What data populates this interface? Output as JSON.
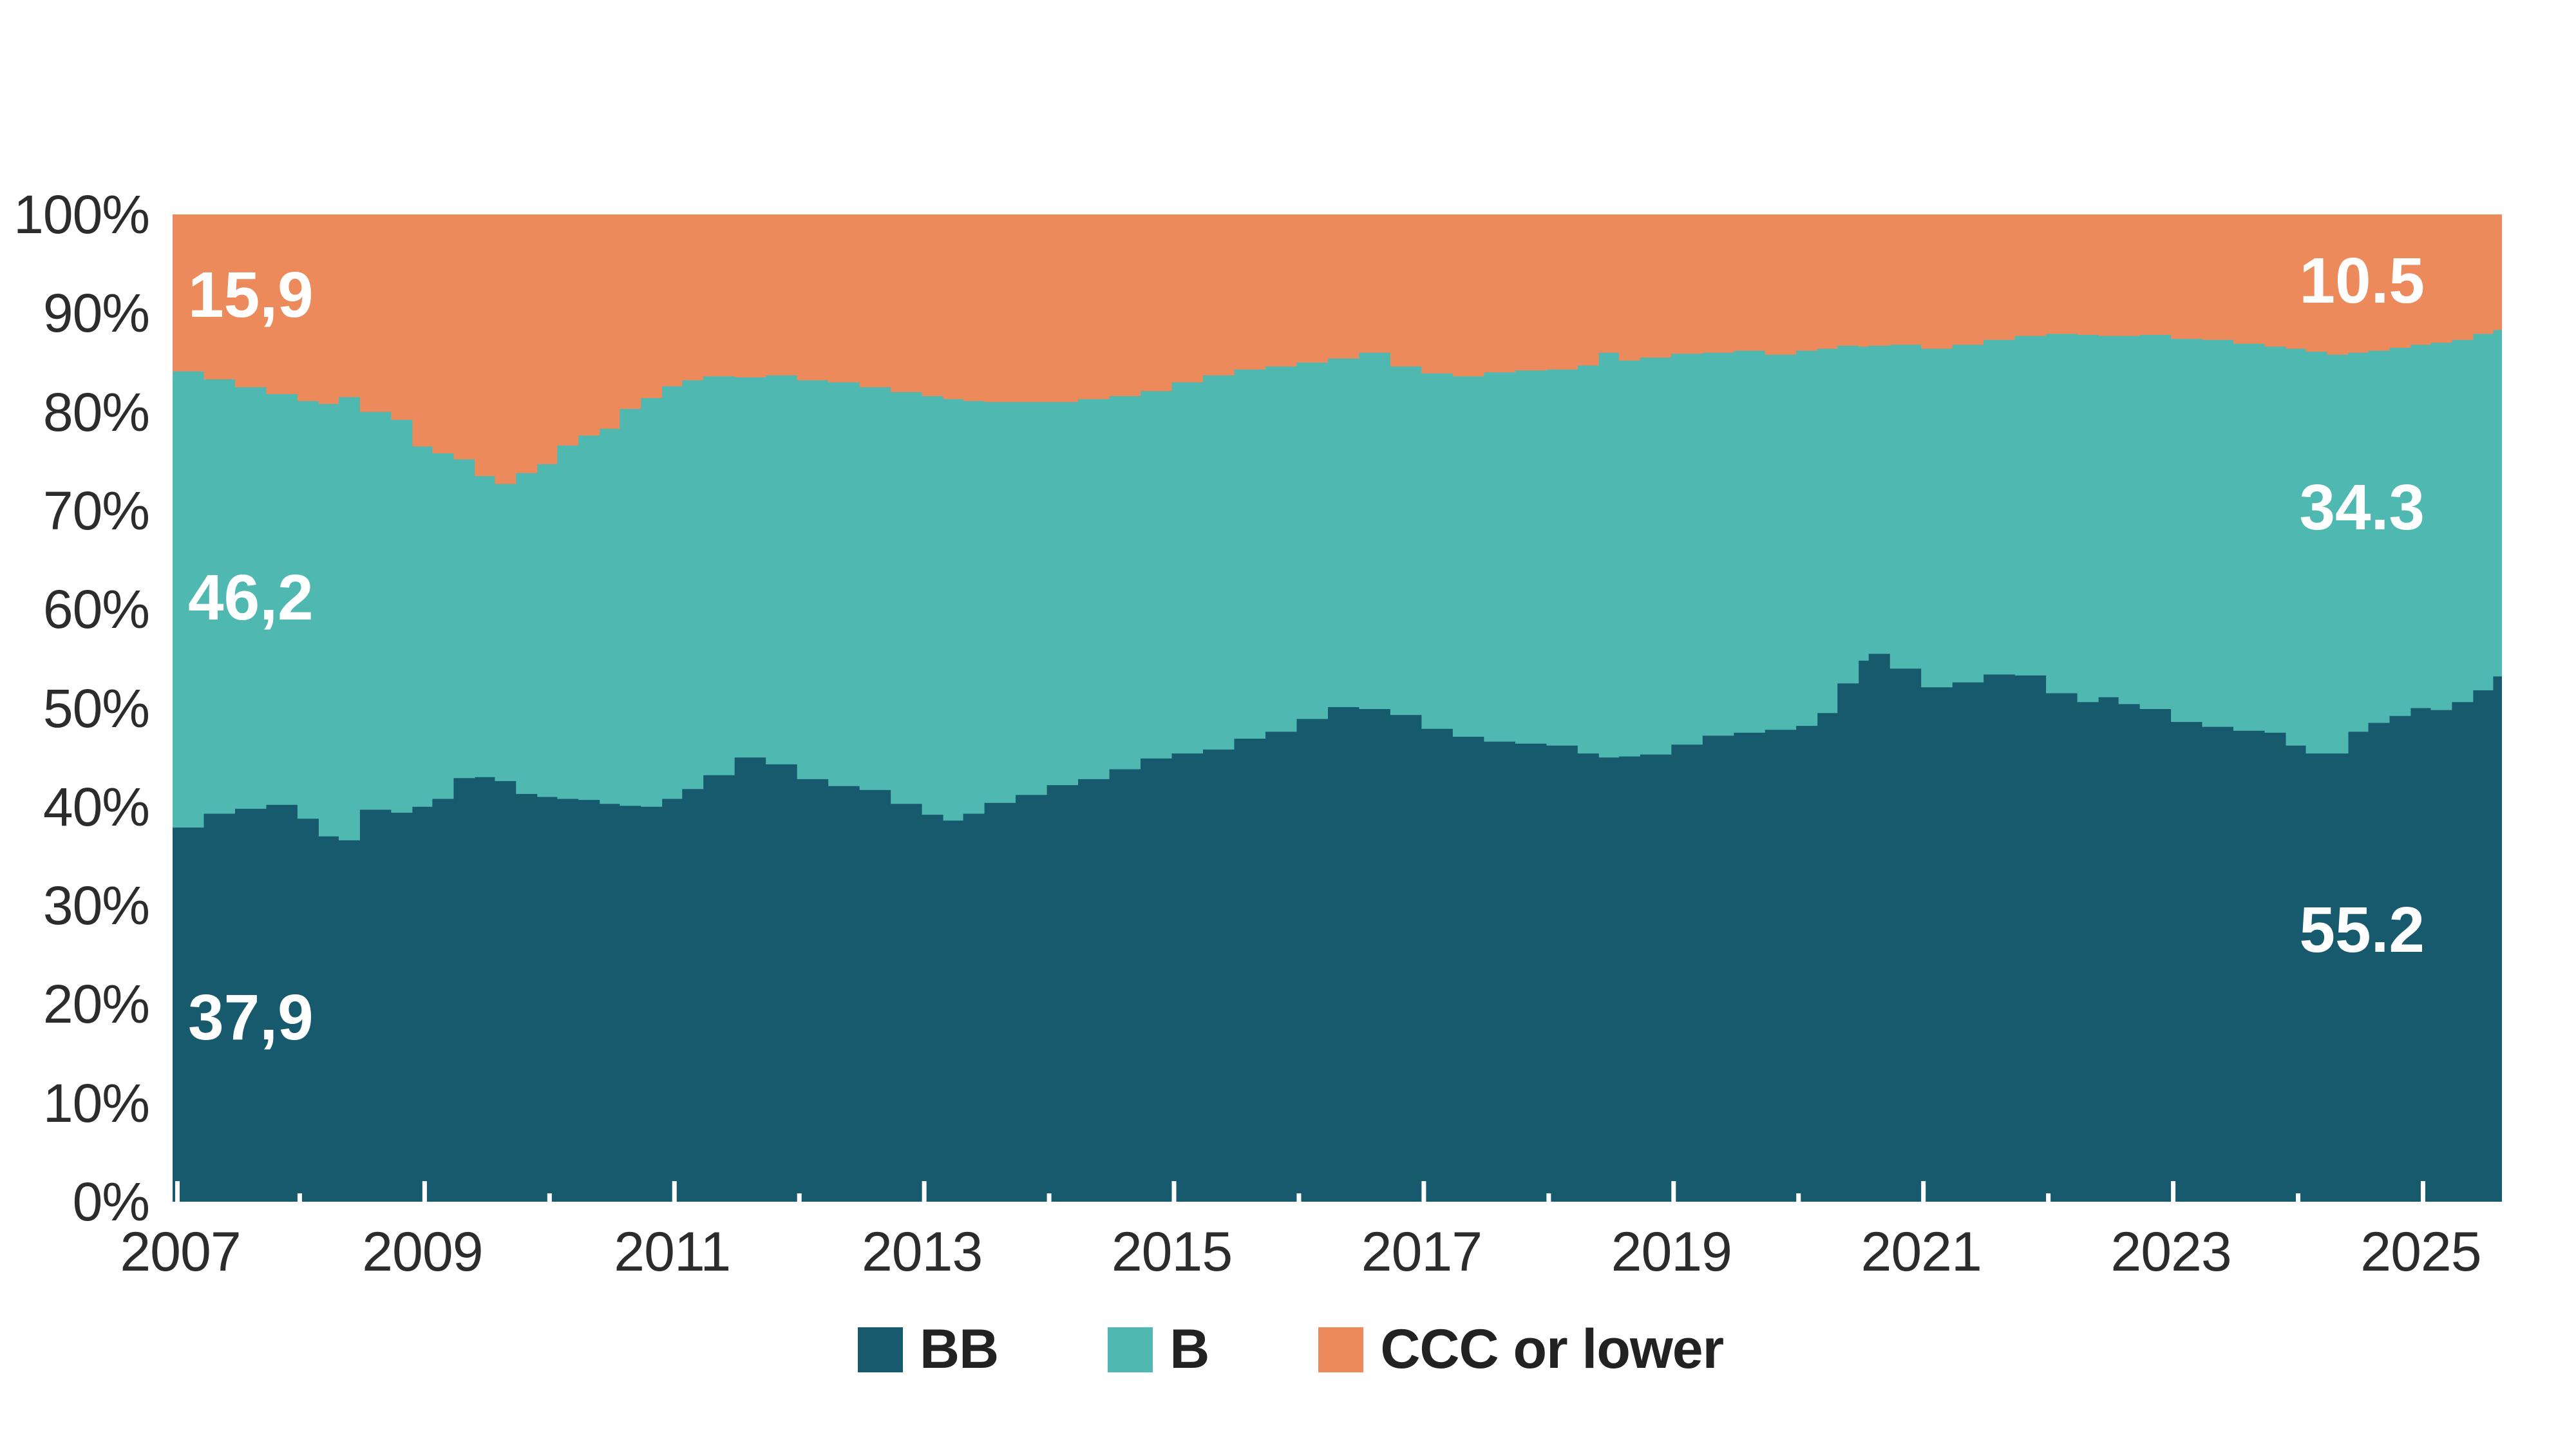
{
  "chart_data": {
    "type": "area",
    "stacked": true,
    "title": "",
    "unit": "%",
    "xlim": [
      2007.0,
      2025.65
    ],
    "ylim": [
      0,
      100
    ],
    "grid": false,
    "legend_position": "bottom",
    "y_axis": {
      "labels": [
        "0%",
        "10%",
        "20%",
        "30%",
        "40%",
        "50%",
        "60%",
        "70%",
        "80%",
        "90%",
        "100%"
      ]
    },
    "x_axis": {
      "labeled_years": [
        2007,
        2009,
        2011,
        2013,
        2015,
        2017,
        2019,
        2021,
        2023,
        2025
      ],
      "minor_tick_years": [
        2008,
        2010,
        2012,
        2014,
        2016,
        2018,
        2020,
        2022,
        2024
      ]
    },
    "x": [
      2007.0,
      2007.25,
      2007.5,
      2007.75,
      2008.0,
      2008.17,
      2008.33,
      2008.5,
      2008.75,
      2008.92,
      2009.08,
      2009.25,
      2009.42,
      2009.58,
      2009.75,
      2009.92,
      2010.08,
      2010.25,
      2010.42,
      2010.58,
      2010.75,
      2010.92,
      2011.08,
      2011.25,
      2011.5,
      2011.75,
      2012.0,
      2012.25,
      2012.5,
      2012.75,
      2013.0,
      2013.17,
      2013.33,
      2013.5,
      2013.75,
      2014.0,
      2014.25,
      2014.5,
      2014.75,
      2015.0,
      2015.25,
      2015.5,
      2015.75,
      2016.0,
      2016.25,
      2016.5,
      2016.75,
      2017.0,
      2017.25,
      2017.5,
      2017.75,
      2018.0,
      2018.25,
      2018.42,
      2018.58,
      2018.75,
      2019.0,
      2019.25,
      2019.5,
      2019.75,
      2020.0,
      2020.17,
      2020.33,
      2020.5,
      2020.58,
      2020.75,
      2021.0,
      2021.25,
      2021.5,
      2021.75,
      2022.0,
      2022.25,
      2022.42,
      2022.58,
      2022.75,
      2023.0,
      2023.25,
      2023.5,
      2023.75,
      2023.92,
      2024.08,
      2024.25,
      2024.42,
      2024.58,
      2024.75,
      2024.92,
      2025.08,
      2025.25,
      2025.42,
      2025.58,
      2025.65
    ],
    "series": [
      {
        "name": "BB",
        "color": "#175a6d",
        "values": [
          37.9,
          39.3,
          39.8,
          40.2,
          38.8,
          37.0,
          36.6,
          39.7,
          39.4,
          40.0,
          40.8,
          42.9,
          43.0,
          42.6,
          41.3,
          41.0,
          40.8,
          40.7,
          40.3,
          40.1,
          40.0,
          40.8,
          41.8,
          43.2,
          45.0,
          44.3,
          42.8,
          42.1,
          41.7,
          40.3,
          39.2,
          38.6,
          39.3,
          40.4,
          41.2,
          42.2,
          42.8,
          43.8,
          44.9,
          45.4,
          45.8,
          46.9,
          47.6,
          48.9,
          50.1,
          49.9,
          49.3,
          47.9,
          47.1,
          46.6,
          46.4,
          46.2,
          45.4,
          45.0,
          45.1,
          45.3,
          46.3,
          47.2,
          47.5,
          47.8,
          48.2,
          49.5,
          52.5,
          54.8,
          55.5,
          54.0,
          52.1,
          52.6,
          53.4,
          53.3,
          51.5,
          50.6,
          51.1,
          50.4,
          49.9,
          48.6,
          48.1,
          47.7,
          47.5,
          46.2,
          45.4,
          45.4,
          47.6,
          48.5,
          49.2,
          50.0,
          49.8,
          50.6,
          51.8,
          53.2,
          55.2
        ]
      },
      {
        "name": "B",
        "color": "#4fb8b1",
        "values": [
          46.2,
          44.0,
          42.7,
          41.6,
          42.3,
          43.8,
          44.9,
          40.3,
          39.8,
          36.5,
          35.0,
          32.3,
          30.5,
          30.1,
          32.5,
          33.7,
          35.8,
          36.9,
          38.0,
          40.2,
          41.4,
          41.8,
          41.4,
          40.4,
          38.5,
          39.4,
          40.4,
          40.9,
          40.8,
          41.7,
          42.4,
          42.7,
          41.8,
          40.6,
          39.8,
          38.8,
          38.5,
          37.8,
          37.2,
          37.6,
          37.9,
          37.4,
          37.0,
          36.1,
          35.3,
          36.1,
          35.3,
          36.0,
          36.5,
          37.4,
          37.8,
          38.1,
          39.3,
          41.0,
          40.1,
          40.2,
          39.6,
          38.8,
          38.7,
          38.0,
          38.0,
          36.9,
          34.2,
          31.8,
          31.2,
          32.8,
          34.3,
          34.2,
          33.9,
          34.4,
          36.4,
          37.2,
          36.6,
          37.3,
          37.9,
          38.8,
          39.2,
          39.2,
          39.1,
          40.2,
          40.7,
          40.4,
          38.4,
          37.7,
          37.3,
          36.8,
          37.2,
          36.7,
          36.1,
          35.1,
          34.3
        ]
      },
      {
        "name": "CCC or lower",
        "color": "#ed8a5c",
        "values_note": "remainder to 100%"
      }
    ],
    "annotations": {
      "left": {
        "ccc": "15,9",
        "b": "46,2",
        "bb": "37,9"
      },
      "right": {
        "ccc": "10.5",
        "b": "34.3",
        "bb": "55.2"
      }
    },
    "legend": [
      "BB",
      "B",
      "CCC or lower"
    ]
  }
}
